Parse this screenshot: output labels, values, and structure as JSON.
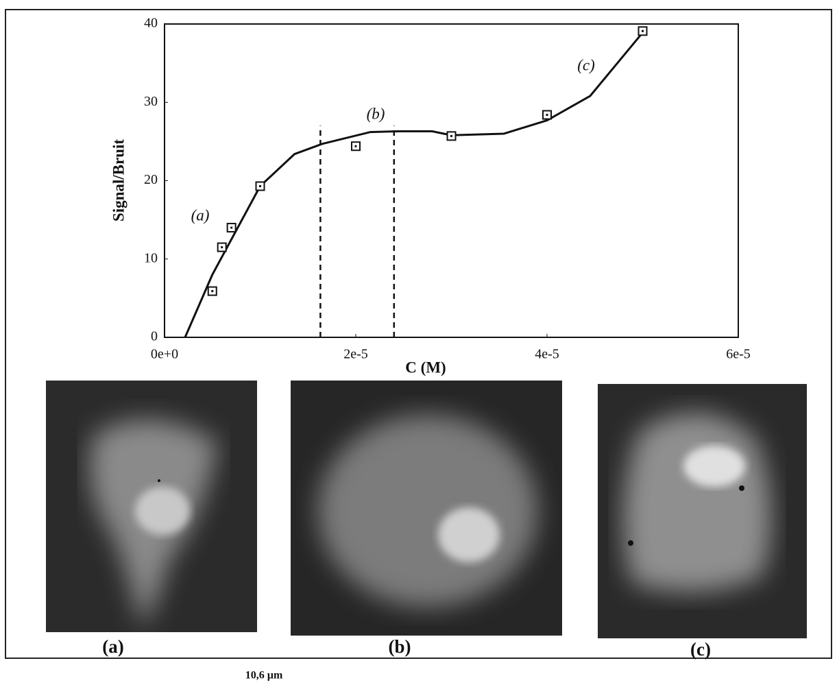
{
  "chart_data": {
    "type": "scatter",
    "xlabel": "C (M)",
    "ylabel": "Signal/Bruit",
    "xlim": [
      0,
      6e-05
    ],
    "ylim": [
      0,
      40
    ],
    "xticks": [
      {
        "value": 0,
        "label": "0e+0"
      },
      {
        "value": 2e-05,
        "label": "2e-5"
      },
      {
        "value": 4e-05,
        "label": "4e-5"
      },
      {
        "value": 6e-05,
        "label": "6e-5"
      }
    ],
    "yticks": [
      0,
      10,
      20,
      30,
      40
    ],
    "grid": false,
    "series": [
      {
        "type": "scatter",
        "color": "#111111",
        "x": [
          5e-06,
          6e-06,
          7e-06,
          1e-05,
          2e-05,
          3e-05,
          4e-05,
          5e-05
        ],
        "values": [
          5.9,
          11.5,
          14.0,
          19.3,
          24.4,
          25.7,
          28.4,
          39.1
        ]
      },
      {
        "type": "line",
        "color": "#111111",
        "x": [
          2.15e-06,
          5e-06,
          1e-05,
          1.36e-05,
          1.65e-05,
          2.15e-05,
          2.44e-05,
          2.8e-05,
          3e-05,
          3.55e-05,
          4e-05,
          4.45e-05,
          5e-05
        ],
        "values": [
          0,
          8,
          19.3,
          23.4,
          24.7,
          26.2,
          26.3,
          26.3,
          25.8,
          26.0,
          27.7,
          30.8,
          38.9
        ]
      }
    ],
    "vlines": [
      {
        "x": 1.63e-05,
        "y": [
          0,
          27
        ]
      },
      {
        "x": 2.4e-05,
        "y": [
          0,
          27
        ]
      }
    ],
    "annotations": [
      "(a)",
      "(b)",
      "(c)"
    ]
  },
  "panels": [
    {
      "label": "(a)"
    },
    {
      "label": "(b)"
    },
    {
      "label": "(c)"
    }
  ],
  "scale_label": "10,6 µm"
}
